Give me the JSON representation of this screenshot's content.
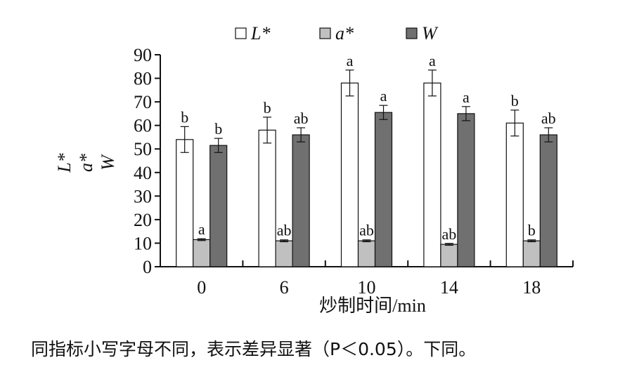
{
  "chart_data": {
    "type": "bar",
    "categories": [
      "0",
      "6",
      "10",
      "14",
      "18"
    ],
    "xlabel": "炒制时间/min",
    "ylabel": "L*\na*\nW",
    "ylim": [
      0,
      90
    ],
    "yticks": [
      0,
      10,
      20,
      30,
      40,
      50,
      60,
      70,
      80,
      90
    ],
    "grid": false,
    "legend_position": "top-center",
    "series": [
      {
        "name": "L*",
        "color": "#ffffff",
        "values": [
          54,
          58,
          78,
          78,
          61
        ],
        "errors": [
          5.5,
          5.5,
          5.5,
          5.5,
          5.5
        ],
        "labels": [
          "b",
          "b",
          "a",
          "a",
          "b"
        ]
      },
      {
        "name": "a*",
        "color": "#c0c0c0",
        "values": [
          11.5,
          11,
          11,
          9.5,
          11
        ],
        "errors": [
          0.4,
          0.4,
          0.4,
          0.4,
          0.4
        ],
        "labels": [
          "a",
          "ab",
          "ab",
          "ab",
          "b"
        ]
      },
      {
        "name": "W",
        "color": "#707070",
        "values": [
          51.5,
          56,
          65.5,
          65,
          56
        ],
        "errors": [
          3,
          3,
          3,
          3,
          3
        ],
        "labels": [
          "b",
          "ab",
          "a",
          "a",
          "ab"
        ]
      }
    ]
  },
  "caption": "同指标小写字母不同，表示差异显著（P＜0.05）。下同。"
}
